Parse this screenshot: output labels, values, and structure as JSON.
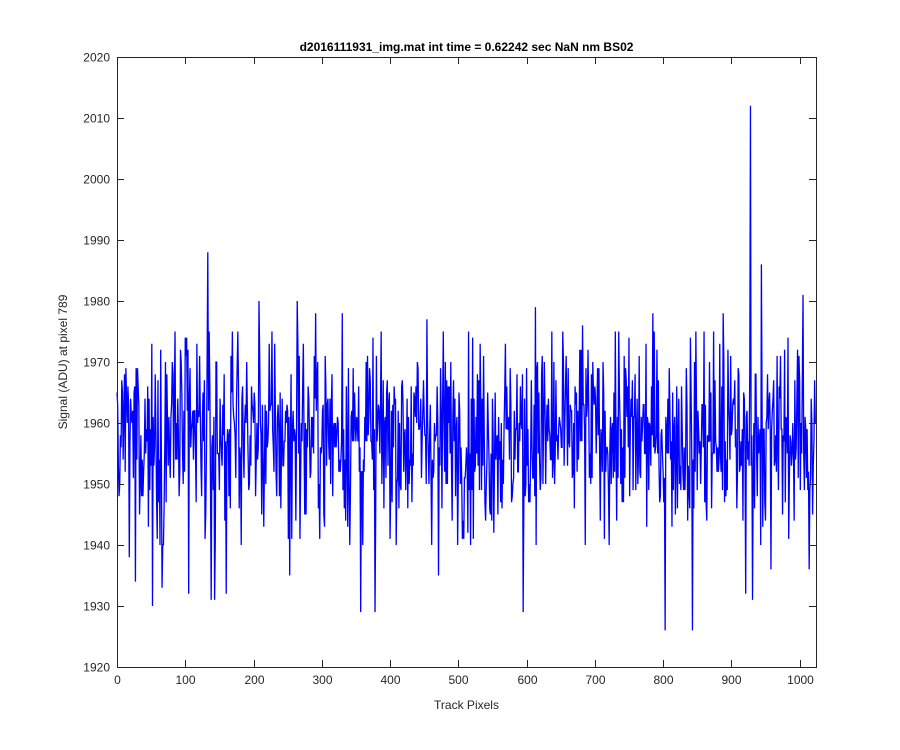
{
  "chart_data": {
    "type": "line",
    "title": "d2016111931_img.mat int time = 0.62242 sec  NaN nm BS02",
    "xlabel": "Track Pixels",
    "ylabel": "Signal (ADU) at pixel 789",
    "xlim": [
      0,
      1024
    ],
    "ylim": [
      1920,
      2020
    ],
    "xticks": [
      0,
      100,
      200,
      300,
      400,
      500,
      600,
      700,
      800,
      900,
      1000
    ],
    "yticks": [
      1920,
      1930,
      1940,
      1950,
      1960,
      1970,
      1980,
      1990,
      2000,
      2010,
      2020
    ],
    "xtick_labels": [
      "0",
      "100",
      "200",
      "300",
      "400",
      "500",
      "600",
      "700",
      "800",
      "900",
      "1000"
    ],
    "ytick_labels": [
      "1920",
      "1930",
      "1940",
      "1950",
      "1960",
      "1970",
      "1980",
      "1990",
      "2000",
      "2010",
      "2020"
    ],
    "grid": false,
    "line_color": "#0000ff",
    "series": [
      {
        "n_points": 1024,
        "baseline": 1958,
        "std": 8,
        "notable_points": [
          {
            "x": 1,
            "y": 1963
          },
          {
            "x": 4,
            "y": 1950
          },
          {
            "x": 7,
            "y": 1967
          },
          {
            "x": 18,
            "y": 1938
          },
          {
            "x": 27,
            "y": 1934
          },
          {
            "x": 30,
            "y": 1969
          },
          {
            "x": 52,
            "y": 1930
          },
          {
            "x": 66,
            "y": 1933
          },
          {
            "x": 85,
            "y": 1975
          },
          {
            "x": 105,
            "y": 1932
          },
          {
            "x": 133,
            "y": 1988
          },
          {
            "x": 138,
            "y": 1931
          },
          {
            "x": 143,
            "y": 1931
          },
          {
            "x": 160,
            "y": 1932
          },
          {
            "x": 177,
            "y": 1975
          },
          {
            "x": 208,
            "y": 1980
          },
          {
            "x": 253,
            "y": 1935
          },
          {
            "x": 264,
            "y": 1980
          },
          {
            "x": 291,
            "y": 1978
          },
          {
            "x": 330,
            "y": 1978
          },
          {
            "x": 357,
            "y": 1929
          },
          {
            "x": 378,
            "y": 1929
          },
          {
            "x": 454,
            "y": 1977
          },
          {
            "x": 471,
            "y": 1935
          },
          {
            "x": 595,
            "y": 1929
          },
          {
            "x": 613,
            "y": 1979
          },
          {
            "x": 682,
            "y": 1976
          },
          {
            "x": 785,
            "y": 1978
          },
          {
            "x": 803,
            "y": 1926
          },
          {
            "x": 843,
            "y": 1926
          },
          {
            "x": 888,
            "y": 1978
          },
          {
            "x": 921,
            "y": 1932
          },
          {
            "x": 928,
            "y": 2012
          },
          {
            "x": 931,
            "y": 1931
          },
          {
            "x": 944,
            "y": 1986
          },
          {
            "x": 958,
            "y": 1936
          },
          {
            "x": 1005,
            "y": 1981
          },
          {
            "x": 1014,
            "y": 1936
          },
          {
            "x": 1023,
            "y": 1960
          }
        ]
      }
    ]
  }
}
